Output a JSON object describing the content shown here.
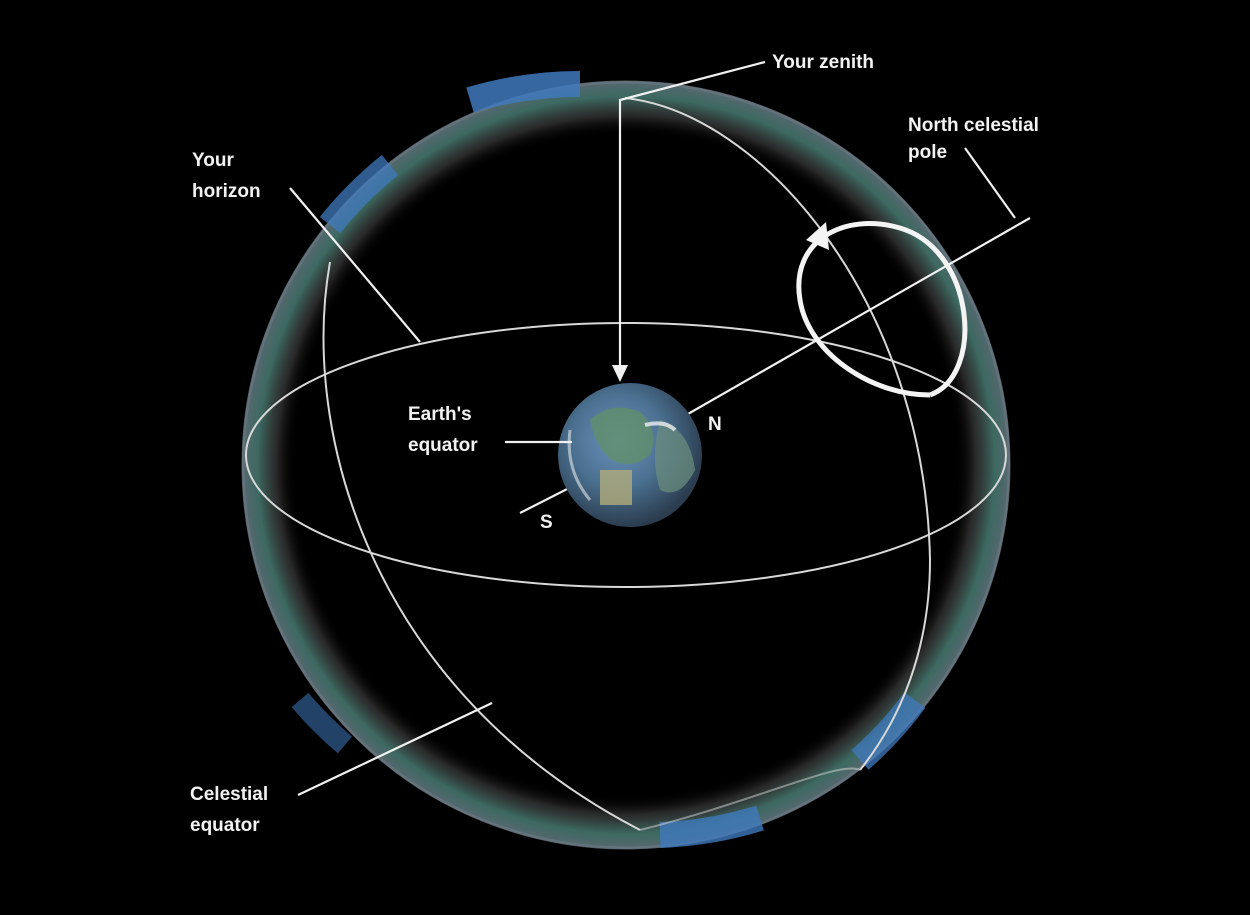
{
  "diagram": {
    "labels": {
      "zenith": "Your zenith",
      "ncp_line1": "North celestial",
      "ncp_line2": "pole",
      "horizon_line1": "Your",
      "horizon_line2": "horizon",
      "earth_equator_line1": "Earth's",
      "earth_equator_line2": "equator",
      "north": "N",
      "south": "S",
      "celestial_equator_line1": "Celestial",
      "celestial_equator_line2": "equator"
    },
    "colors": {
      "background": "#000000",
      "sphere_rim_green": "#2f6f5f",
      "sphere_rim_blue": "#3c74b4",
      "sphere_rim_gray": "#6a6a6a",
      "lines": "#e6e6e6",
      "earth_ocean": "#3a6fae",
      "earth_land": "#5f8f6a"
    }
  }
}
